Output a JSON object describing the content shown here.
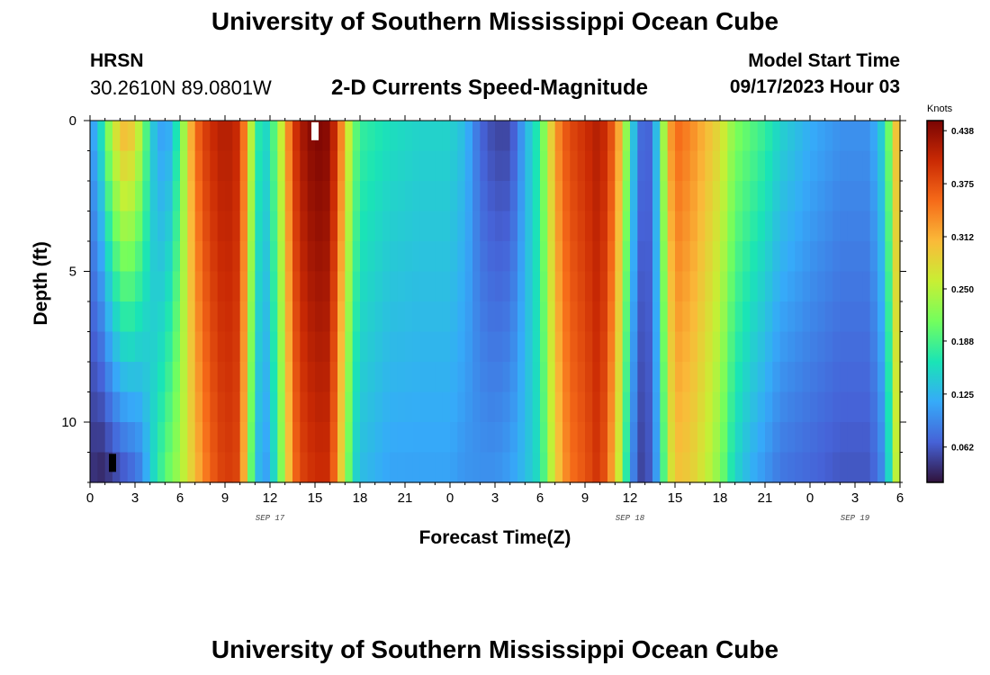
{
  "header": {
    "title": "University of Southern Mississippi Ocean Cube",
    "station_code": "HRSN",
    "station_coords": "30.2610N  89.0801W",
    "subtitle": "2-D Currents Speed-Magnitude",
    "model_start_label": "Model Start Time",
    "model_start_value": "09/17/2023 Hour 03"
  },
  "footer": {
    "title": "University of Southern Mississippi Ocean Cube"
  },
  "chart_data": {
    "type": "heatmap",
    "title": "2-D Currents Speed-Magnitude",
    "xlabel": "Forecast Time(Z)",
    "ylabel": "Depth (ft)",
    "x_range_hours": [
      0,
      54
    ],
    "x_ticks": [
      "0",
      "3",
      "6",
      "9",
      "12",
      "15",
      "18",
      "21",
      "0",
      "3",
      "6",
      "9",
      "12",
      "15",
      "18",
      "21",
      "0",
      "3",
      "6"
    ],
    "date_labels": [
      {
        "label": "SEP 17",
        "hour": 12
      },
      {
        "label": "SEP 18",
        "hour": 36
      },
      {
        "label": "SEP 19",
        "hour": 51
      }
    ],
    "y_range_ft": [
      0,
      12
    ],
    "y_ticks": [
      "0",
      "5",
      "10"
    ],
    "y_tick_values": [
      0,
      5,
      10
    ],
    "depth_levels": 12,
    "colorbar": {
      "unit": "Knots",
      "min": 0.02,
      "max": 0.45,
      "ticks": [
        "0.438",
        "0.375",
        "0.312",
        "0.250",
        "0.188",
        "0.125",
        "0.062"
      ],
      "tick_values": [
        0.438,
        0.375,
        0.312,
        0.25,
        0.188,
        0.125,
        0.062
      ],
      "colors": [
        "#30123b",
        "#4662d7",
        "#36aaf9",
        "#1ae4b6",
        "#72fe5e",
        "#c8ef34",
        "#faba39",
        "#f66b19",
        "#ca2a04",
        "#7a0403"
      ]
    },
    "speed_profile": {
      "hours": [
        0,
        0.6,
        1,
        1.5,
        2,
        2.5,
        3,
        3.5,
        4,
        4.5,
        5,
        5.5,
        6,
        6.5,
        7,
        7.5,
        8,
        9,
        10,
        10.5,
        11,
        11.5,
        12,
        12.5,
        13,
        13.5,
        14,
        15,
        16,
        16.5,
        17,
        17.5,
        18,
        20,
        22,
        24,
        25,
        25.5,
        26,
        27,
        28,
        28.5,
        29,
        30,
        30.5,
        31,
        31.5,
        32,
        33,
        34,
        35,
        35.5,
        36,
        36.5,
        37,
        37.5,
        38,
        38.5,
        39,
        40,
        41,
        42,
        42.5,
        43,
        44,
        45,
        46,
        48,
        50,
        52,
        53,
        53.5,
        54
      ],
      "surface": [
        0.1,
        0.14,
        0.2,
        0.26,
        0.3,
        0.32,
        0.28,
        0.24,
        0.15,
        0.12,
        0.1,
        0.13,
        0.19,
        0.28,
        0.35,
        0.38,
        0.4,
        0.42,
        0.4,
        0.3,
        0.2,
        0.14,
        0.17,
        0.22,
        0.3,
        0.38,
        0.42,
        0.45,
        0.44,
        0.38,
        0.3,
        0.22,
        0.18,
        0.16,
        0.15,
        0.15,
        0.13,
        0.1,
        0.07,
        0.05,
        0.05,
        0.08,
        0.12,
        0.18,
        0.26,
        0.32,
        0.36,
        0.38,
        0.4,
        0.42,
        0.36,
        0.28,
        0.18,
        0.09,
        0.06,
        0.08,
        0.18,
        0.3,
        0.36,
        0.34,
        0.31,
        0.28,
        0.25,
        0.22,
        0.2,
        0.18,
        0.15,
        0.12,
        0.1,
        0.1,
        0.16,
        0.26,
        0.34
      ],
      "bottom": [
        0.04,
        0.03,
        0.03,
        0.04,
        0.05,
        0.06,
        0.07,
        0.09,
        0.14,
        0.17,
        0.2,
        0.22,
        0.24,
        0.27,
        0.3,
        0.33,
        0.36,
        0.39,
        0.38,
        0.25,
        0.15,
        0.1,
        0.12,
        0.18,
        0.26,
        0.34,
        0.38,
        0.4,
        0.4,
        0.32,
        0.25,
        0.16,
        0.13,
        0.11,
        0.11,
        0.11,
        0.1,
        0.1,
        0.1,
        0.1,
        0.11,
        0.12,
        0.13,
        0.16,
        0.22,
        0.28,
        0.32,
        0.35,
        0.37,
        0.4,
        0.3,
        0.22,
        0.12,
        0.05,
        0.05,
        0.07,
        0.14,
        0.24,
        0.3,
        0.29,
        0.26,
        0.22,
        0.18,
        0.15,
        0.12,
        0.1,
        0.08,
        0.07,
        0.06,
        0.06,
        0.1,
        0.2,
        0.3
      ]
    },
    "missing_cells": [
      {
        "hour": 15,
        "depth_ft": 0.5,
        "note": "white gap"
      },
      {
        "hour": 1.5,
        "depth_ft": 11.5,
        "note": "black cell"
      }
    ]
  }
}
